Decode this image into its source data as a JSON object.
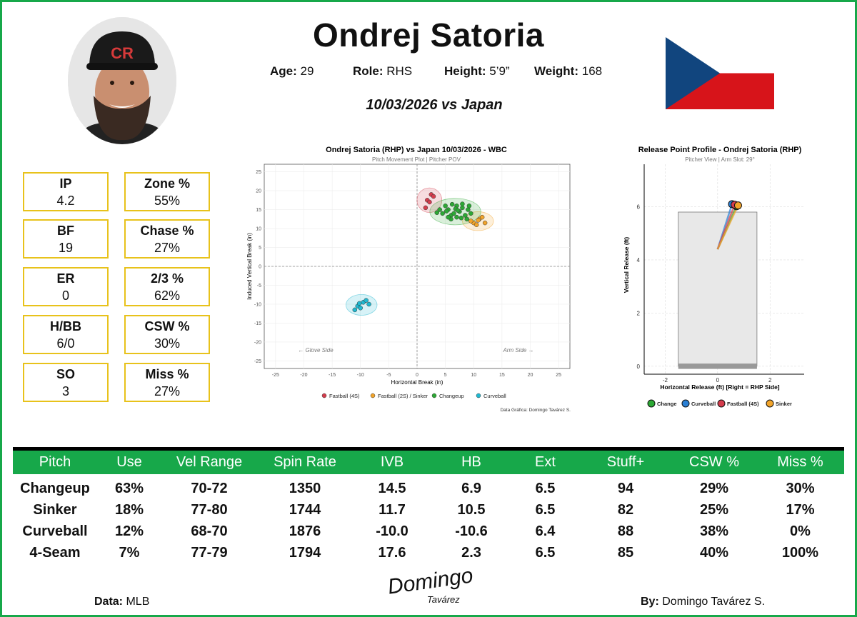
{
  "player": {
    "name": "Ondrej Satoria",
    "age_label": "Age:",
    "age": "29",
    "role_label": "Role:",
    "role": "RHS",
    "height_label": "Height:",
    "height": "5’9”",
    "weight_label": "Weight:",
    "weight": "168",
    "game": "10/03/2026 vs Japan",
    "cap_logo": "CR"
  },
  "stats": [
    {
      "label": "IP",
      "value": "4.2"
    },
    {
      "label": "Zone %",
      "value": "55%"
    },
    {
      "label": "BF",
      "value": "19"
    },
    {
      "label": "Chase %",
      "value": "27%"
    },
    {
      "label": "ER",
      "value": "0"
    },
    {
      "label": "2/3 %",
      "value": "62%"
    },
    {
      "label": "H/BB",
      "value": "6/0"
    },
    {
      "label": "CSW %",
      "value": "30%"
    },
    {
      "label": "SO",
      "value": "3"
    },
    {
      "label": "Miss %",
      "value": "27%"
    }
  ],
  "colors": {
    "accent": "#17a84a",
    "box_border": "#e8c21b",
    "fastball": "#d43c4c",
    "sinker": "#f2a42a",
    "changeup": "#2ca834",
    "curveball": "#20b8d0"
  },
  "chart_data": [
    {
      "type": "scatter",
      "title": "Ondrej Satoria (RHP) vs Japan 10/03/2026 - WBC",
      "subtitle": "Pitch Movement Plot | Pitcher POV",
      "xlabel": "Horizontal Break (in)",
      "ylabel": "Induced Vertical Break (in)",
      "xlim": [
        -27,
        27
      ],
      "ylim": [
        -27,
        27
      ],
      "xticks": [
        -25,
        -20,
        -15,
        -10,
        -5,
        0,
        5,
        10,
        15,
        20,
        25
      ],
      "yticks": [
        25,
        20,
        15,
        10,
        5,
        0,
        -5,
        -10,
        -15,
        -20,
        -25
      ],
      "annotations": {
        "left": "← Glove Side",
        "right": "Arm Side →"
      },
      "caption": "Data Gráfica: Domingo Tavárez S.",
      "grid": true,
      "legend_position": "bottom",
      "series": [
        {
          "name": "Fastball (4S)",
          "color": "#d43c4c",
          "points": [
            [
              1.8,
              17.5
            ],
            [
              2.5,
              19
            ],
            [
              1.5,
              15.5
            ],
            [
              2.9,
              18.5
            ],
            [
              2.2,
              17
            ]
          ]
        },
        {
          "name": "Fastball (2S) / Sinker",
          "color": "#f2a42a",
          "points": [
            [
              10,
              11.5
            ],
            [
              11,
              12.5
            ],
            [
              10.5,
              11
            ],
            [
              11.5,
              13
            ],
            [
              9.5,
              12
            ],
            [
              12,
              11.5
            ],
            [
              10.8,
              12.2
            ]
          ]
        },
        {
          "name": "Changeup",
          "color": "#2ca834",
          "points": [
            [
              4.5,
              14
            ],
            [
              5.5,
              15
            ],
            [
              6,
              13.5
            ],
            [
              7,
              16
            ],
            [
              7.5,
              14.5
            ],
            [
              8,
              15.5
            ],
            [
              6.5,
              14
            ],
            [
              5,
              16
            ],
            [
              8.5,
              13.5
            ],
            [
              9,
              15
            ],
            [
              6,
              12.5
            ],
            [
              7,
              13
            ],
            [
              4,
              15
            ],
            [
              5.5,
              13
            ],
            [
              8,
              16.5
            ],
            [
              9.5,
              14
            ],
            [
              6.8,
              15.2
            ],
            [
              7.8,
              12.8
            ],
            [
              5.2,
              14.6
            ],
            [
              3.5,
              14.2
            ],
            [
              8.8,
              12.5
            ],
            [
              6.2,
              16.4
            ],
            [
              7.2,
              14.8
            ],
            [
              9.2,
              16
            ]
          ]
        },
        {
          "name": "Curveball",
          "color": "#20b8d0",
          "points": [
            [
              -10.5,
              -10.5
            ],
            [
              -9.5,
              -9.5
            ],
            [
              -10,
              -11
            ],
            [
              -8.5,
              -10
            ],
            [
              -11,
              -11.5
            ],
            [
              -9,
              -9
            ],
            [
              -10.2,
              -9.8
            ]
          ]
        }
      ]
    },
    {
      "type": "scatter",
      "title": "Release Point Profile - Ondrej Satoria (RHP)",
      "subtitle": "Pitcher View | Arm Slot: 29°",
      "xlabel": "Horizontal Release (ft) [Right = RHP Side]",
      "ylabel": "Vertical Release (ft)",
      "xlim": [
        -2.8,
        3.3
      ],
      "ylim": [
        -0.3,
        7.6
      ],
      "xticks": [
        -2,
        0,
        2
      ],
      "yticks": [
        0,
        2,
        4,
        6
      ],
      "grid": true,
      "legend_position": "bottom",
      "series": [
        {
          "name": "Change",
          "color": "#2ca834",
          "points": [
            [
              0.72,
              6.02
            ]
          ]
        },
        {
          "name": "Curveball",
          "color": "#2a7fd4",
          "points": [
            [
              0.55,
              6.1
            ]
          ]
        },
        {
          "name": "Fastball (4S)",
          "color": "#d43c4c",
          "points": [
            [
              0.65,
              6.08
            ]
          ]
        },
        {
          "name": "Sinker",
          "color": "#f2a42a",
          "points": [
            [
              0.78,
              6.05
            ]
          ]
        }
      ]
    }
  ],
  "table": {
    "headers": [
      "Pitch",
      "Use",
      "Vel Range",
      "Spin Rate",
      "IVB",
      "HB",
      "Ext",
      "Stuff+",
      "CSW %",
      "Miss %"
    ],
    "rows": [
      [
        "Changeup",
        "63%",
        "70-72",
        "1350",
        "14.5",
        "6.9",
        "6.5",
        "94",
        "29%",
        "30%"
      ],
      [
        "Sinker",
        "18%",
        "77-80",
        "1744",
        "11.7",
        "10.5",
        "6.5",
        "82",
        "25%",
        "17%"
      ],
      [
        "Curveball",
        "12%",
        "68-70",
        "1876",
        "-10.0",
        "-10.6",
        "6.4",
        "88",
        "38%",
        "0%"
      ],
      [
        "4-Seam",
        "7%",
        "77-79",
        "1794",
        "17.6",
        "2.3",
        "6.5",
        "85",
        "40%",
        "100%"
      ]
    ]
  },
  "footer": {
    "data_label": "Data:",
    "data_value": "MLB",
    "by_label": "By:",
    "by_value": "Domingo Tavárez S.",
    "signature_line1": "Domingo",
    "signature_line2": "Tavárez"
  }
}
